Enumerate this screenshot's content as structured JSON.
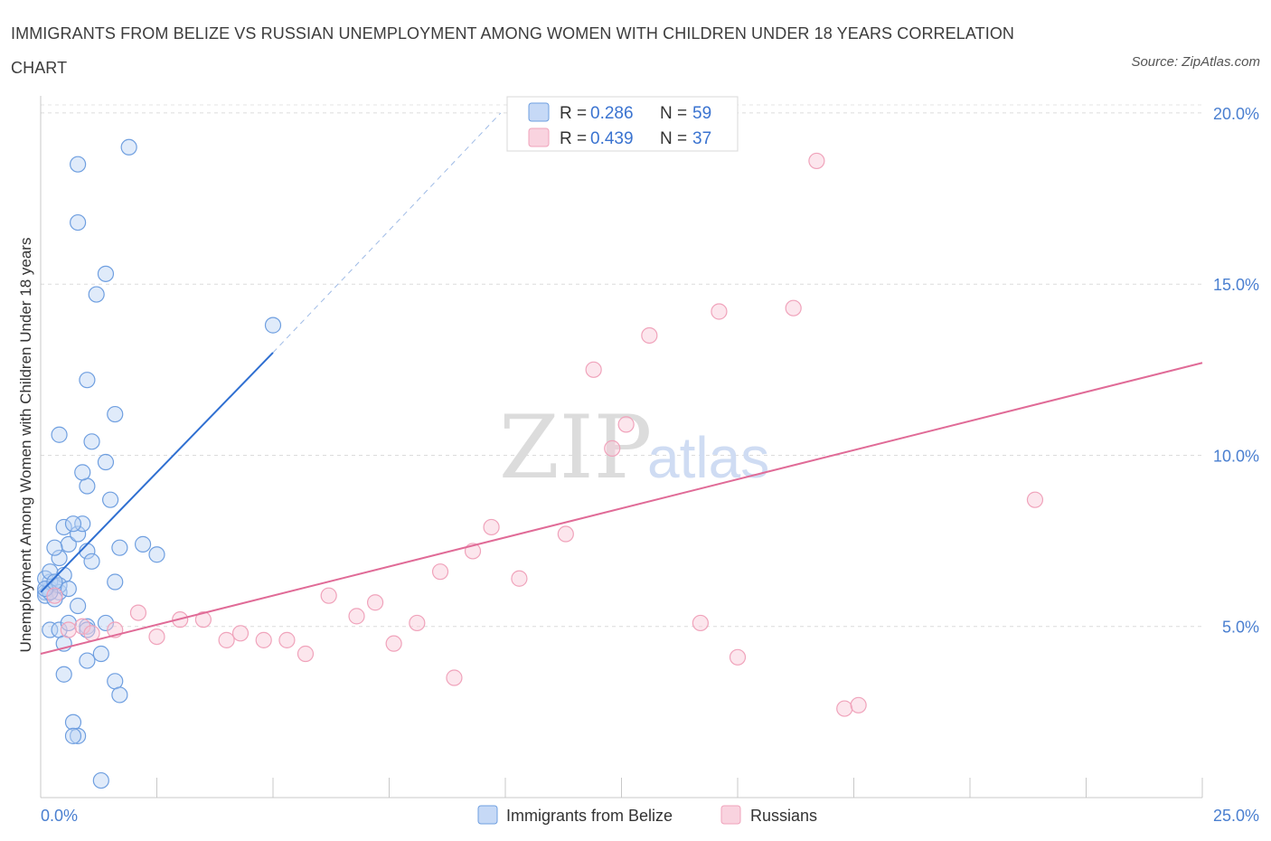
{
  "title": "IMMIGRANTS FROM BELIZE VS RUSSIAN UNEMPLOYMENT AMONG WOMEN WITH CHILDREN UNDER 18 YEARS CORRELATION CHART",
  "source": "Source: ZipAtlas.com",
  "watermark": {
    "zip": "ZIP",
    "atlas": "atlas"
  },
  "legend": {
    "r_label": "R =",
    "n_label": "N =",
    "rows": [
      {
        "r": "0.286",
        "n": "59"
      },
      {
        "r": "0.439",
        "n": "37"
      }
    ]
  },
  "chart_data": {
    "type": "scatter",
    "title": "IMMIGRANTS FROM BELIZE VS RUSSIAN UNEMPLOYMENT AMONG WOMEN WITH CHILDREN UNDER 18 YEARS CORRELATION CHART",
    "xlabel": "",
    "ylabel": "Unemployment Among Women with Children Under 18 years",
    "xlim": [
      0,
      25
    ],
    "ylim": [
      0,
      20.5
    ],
    "x_tick_labels": [
      "0.0%",
      "25.0%"
    ],
    "y_ticks": [
      5,
      10,
      15,
      20
    ],
    "y_tick_labels": [
      "5.0%",
      "10.0%",
      "15.0%",
      "20.0%"
    ],
    "grid": true,
    "legend_position": "top-center",
    "series": [
      {
        "name": "Immigrants from Belize",
        "color": "#6f9fe0",
        "line_color": "#2f6fd1",
        "r": 0.286,
        "n": 59,
        "trend": {
          "x0": 0.0,
          "y0": 6.0,
          "x1": 5.0,
          "y1": 13.0,
          "dashed_to_x": 9.9,
          "dashed_to_y": 20.0
        },
        "points": [
          [
            0.1,
            6.0
          ],
          [
            0.2,
            6.1
          ],
          [
            0.1,
            5.9
          ],
          [
            0.3,
            6.2
          ],
          [
            0.2,
            6.3
          ],
          [
            0.4,
            6.0
          ],
          [
            0.1,
            6.4
          ],
          [
            0.3,
            5.8
          ],
          [
            0.5,
            6.5
          ],
          [
            0.2,
            6.6
          ],
          [
            0.4,
            7.0
          ],
          [
            0.6,
            7.4
          ],
          [
            0.3,
            7.3
          ],
          [
            0.8,
            7.7
          ],
          [
            0.5,
            7.9
          ],
          [
            0.9,
            8.0
          ],
          [
            0.7,
            8.0
          ],
          [
            0.4,
            6.2
          ],
          [
            0.6,
            6.1
          ],
          [
            0.2,
            4.9
          ],
          [
            0.4,
            4.9
          ],
          [
            0.5,
            4.5
          ],
          [
            0.6,
            5.1
          ],
          [
            1.0,
            5.0
          ],
          [
            0.8,
            5.6
          ],
          [
            0.2,
            6.0
          ],
          [
            1.0,
            7.2
          ],
          [
            1.1,
            6.9
          ],
          [
            1.7,
            7.3
          ],
          [
            2.2,
            7.4
          ],
          [
            2.5,
            7.1
          ],
          [
            1.6,
            6.3
          ],
          [
            1.4,
            5.1
          ],
          [
            1.0,
            4.9
          ],
          [
            1.3,
            4.2
          ],
          [
            1.0,
            4.0
          ],
          [
            0.5,
            3.6
          ],
          [
            1.6,
            3.4
          ],
          [
            1.7,
            3.0
          ],
          [
            0.7,
            2.2
          ],
          [
            0.8,
            1.8
          ],
          [
            0.7,
            1.8
          ],
          [
            1.3,
            0.5
          ],
          [
            1.0,
            9.1
          ],
          [
            0.9,
            9.5
          ],
          [
            1.4,
            9.8
          ],
          [
            1.5,
            8.7
          ],
          [
            1.1,
            10.4
          ],
          [
            0.4,
            10.6
          ],
          [
            1.6,
            11.2
          ],
          [
            1.0,
            12.2
          ],
          [
            1.2,
            14.7
          ],
          [
            1.4,
            15.3
          ],
          [
            0.8,
            16.8
          ],
          [
            0.8,
            18.5
          ],
          [
            1.9,
            19.0
          ],
          [
            5.0,
            13.8
          ],
          [
            0.1,
            6.1
          ],
          [
            0.3,
            6.3
          ]
        ]
      },
      {
        "name": "Russians",
        "color": "#f0a3bb",
        "line_color": "#e06b97",
        "r": 0.439,
        "n": 37,
        "trend": {
          "x0": 0.0,
          "y0": 4.2,
          "x1": 25.0,
          "y1": 12.7
        },
        "points": [
          [
            0.3,
            5.9
          ],
          [
            0.6,
            4.9
          ],
          [
            0.9,
            5.0
          ],
          [
            1.1,
            4.8
          ],
          [
            1.6,
            4.9
          ],
          [
            2.1,
            5.4
          ],
          [
            2.5,
            4.7
          ],
          [
            3.0,
            5.2
          ],
          [
            3.5,
            5.2
          ],
          [
            4.0,
            4.6
          ],
          [
            4.3,
            4.8
          ],
          [
            4.8,
            4.6
          ],
          [
            5.3,
            4.6
          ],
          [
            5.7,
            4.2
          ],
          [
            6.2,
            5.9
          ],
          [
            6.8,
            5.3
          ],
          [
            7.2,
            5.7
          ],
          [
            7.6,
            4.5
          ],
          [
            8.1,
            5.1
          ],
          [
            8.6,
            6.6
          ],
          [
            8.9,
            3.5
          ],
          [
            9.3,
            7.2
          ],
          [
            9.7,
            7.9
          ],
          [
            10.3,
            6.4
          ],
          [
            11.3,
            7.7
          ],
          [
            11.9,
            12.5
          ],
          [
            12.3,
            10.2
          ],
          [
            12.6,
            10.9
          ],
          [
            13.1,
            13.5
          ],
          [
            14.2,
            5.1
          ],
          [
            14.6,
            14.2
          ],
          [
            15.0,
            4.1
          ],
          [
            16.2,
            14.3
          ],
          [
            16.7,
            18.6
          ],
          [
            17.3,
            2.6
          ],
          [
            17.6,
            2.7
          ],
          [
            21.4,
            8.7
          ]
        ]
      }
    ]
  }
}
